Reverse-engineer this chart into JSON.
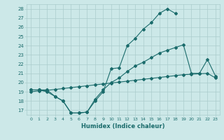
{
  "xlabel": "Humidex (Indice chaleur)",
  "bg_color": "#cce8e8",
  "grid_color": "#aacccc",
  "line_color": "#1a6b6b",
  "xlim": [
    -0.5,
    23.5
  ],
  "ylim": [
    16.5,
    28.5
  ],
  "yticks": [
    17,
    18,
    19,
    20,
    21,
    22,
    23,
    24,
    25,
    26,
    27,
    28
  ],
  "xticks": [
    0,
    1,
    2,
    3,
    4,
    5,
    6,
    7,
    8,
    9,
    10,
    11,
    12,
    13,
    14,
    15,
    16,
    17,
    18,
    19,
    20,
    21,
    22,
    23
  ],
  "line1_x": [
    0,
    1,
    2,
    3,
    4,
    5,
    6,
    7,
    8,
    9,
    10,
    11,
    12,
    13,
    14,
    15,
    16,
    17,
    18
  ],
  "line1_y": [
    19.2,
    19.2,
    19.2,
    18.5,
    18.0,
    16.7,
    16.7,
    16.8,
    18.0,
    19.0,
    21.5,
    21.6,
    24.0,
    24.8,
    25.8,
    26.5,
    27.5,
    28.0,
    27.5
  ],
  "line2_x": [
    0,
    1,
    2,
    3,
    4,
    5,
    6,
    7,
    8,
    9,
    10,
    11,
    12,
    13,
    14,
    15,
    16,
    17,
    18,
    19,
    20,
    21,
    22,
    23
  ],
  "line2_y": [
    19.0,
    19.1,
    19.15,
    19.25,
    19.35,
    19.45,
    19.55,
    19.65,
    19.75,
    19.85,
    19.95,
    20.05,
    20.15,
    20.25,
    20.35,
    20.45,
    20.55,
    20.65,
    20.75,
    20.85,
    20.9,
    20.95,
    21.0,
    20.5
  ],
  "line3_x": [
    0,
    1,
    2,
    3,
    4,
    5,
    6,
    7,
    8,
    9,
    10,
    11,
    12,
    13,
    14,
    15,
    16,
    17,
    18,
    19,
    20,
    21,
    22,
    23
  ],
  "line3_y": [
    19.2,
    19.2,
    19.0,
    18.5,
    18.0,
    16.7,
    16.7,
    16.8,
    18.2,
    19.2,
    20.0,
    20.5,
    21.2,
    21.8,
    22.2,
    22.7,
    23.2,
    23.5,
    23.8,
    24.1,
    21.0,
    21.0,
    22.5,
    20.7
  ]
}
